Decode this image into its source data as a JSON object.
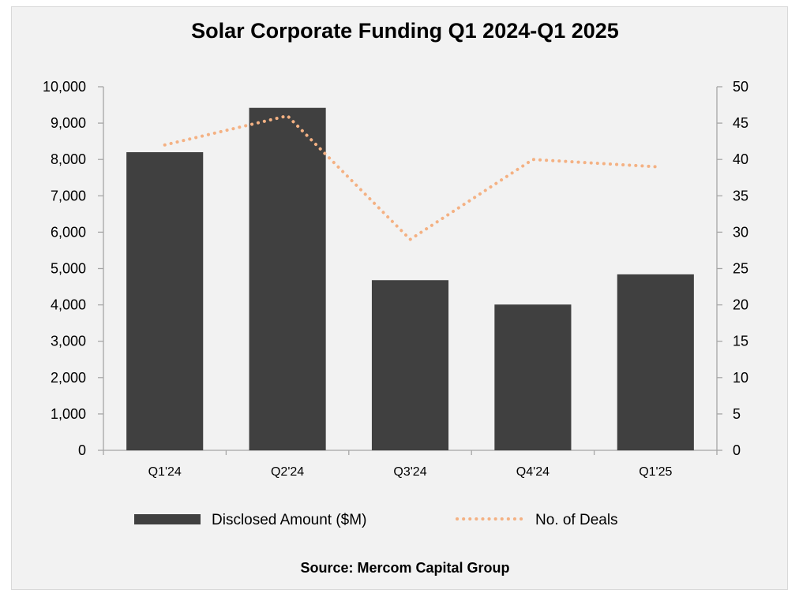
{
  "chart_data": {
    "type": "bar",
    "title": "Solar Corporate Funding Q1 2024-Q1 2025",
    "categories": [
      "Q1'24",
      "Q2'24",
      "Q3'24",
      "Q4'24",
      "Q1'25"
    ],
    "series": [
      {
        "name": "Disclosed Amount ($M)",
        "type": "bar",
        "axis": "left",
        "values": [
          8200,
          9420,
          4680,
          4010,
          4840
        ],
        "color": "#404040"
      },
      {
        "name": "No. of Deals",
        "type": "line",
        "style": "dotted",
        "axis": "right",
        "values": [
          42,
          46,
          29,
          40,
          39
        ],
        "color": "#f4b183"
      }
    ],
    "y_left": {
      "min": 0,
      "max": 10000,
      "step": 1000,
      "tick_labels": [
        "0",
        "1,000",
        "2,000",
        "3,000",
        "4,000",
        "5,000",
        "6,000",
        "7,000",
        "8,000",
        "9,000",
        "10,000"
      ]
    },
    "y_right": {
      "min": 0,
      "max": 50,
      "step": 5,
      "tick_labels": [
        "0",
        "5",
        "10",
        "15",
        "20",
        "25",
        "30",
        "35",
        "40",
        "45",
        "50"
      ]
    },
    "grid": false,
    "legend_position": "bottom",
    "source": "Source: Mercom Capital Group"
  }
}
